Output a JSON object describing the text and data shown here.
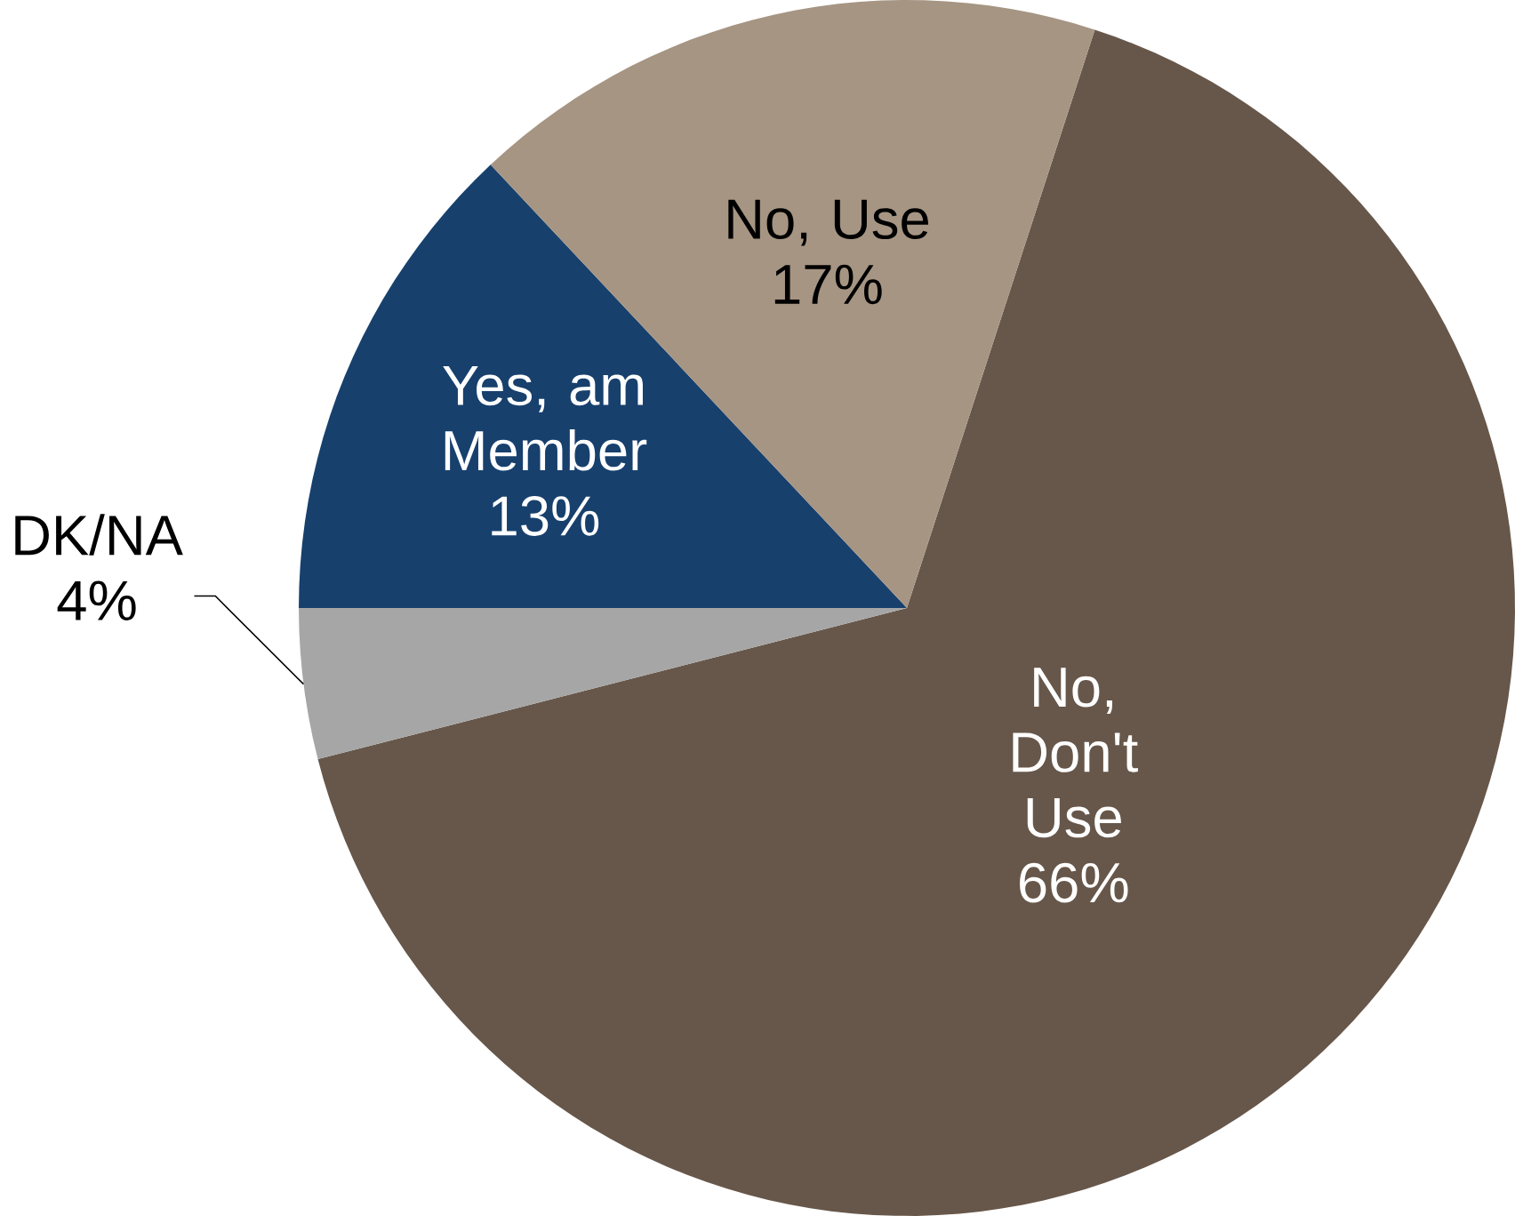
{
  "chart_data": {
    "type": "pie",
    "categories": [
      "No, Don't Use",
      "DK/NA",
      "Yes, am Member",
      "No, Use"
    ],
    "values": [
      66,
      4,
      13,
      17
    ],
    "value_labels": [
      "66%",
      "4%",
      "13%",
      "17%"
    ],
    "colors": [
      "#67574a",
      "#a6a6a6",
      "#17406d",
      "#a69583"
    ]
  }
}
